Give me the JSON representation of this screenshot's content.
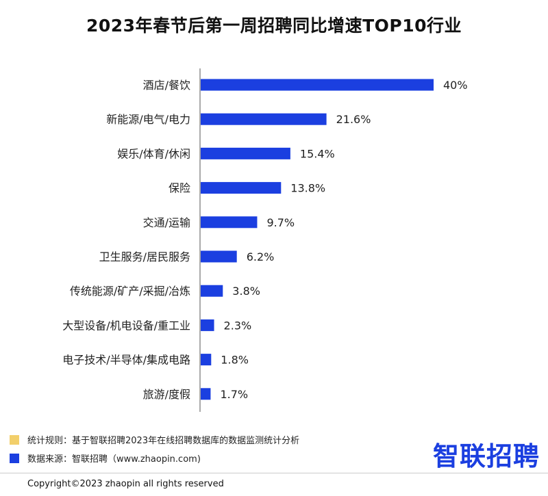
{
  "title": "2023年春节后第一周招聘同比增速TOP10行业",
  "chart_data": {
    "type": "bar",
    "orientation": "horizontal",
    "categories": [
      "酒店/餐饮",
      "新能源/电气/电力",
      "娱乐/体育/休闲",
      "保险",
      "交通/运输",
      "卫生服务/居民服务",
      "传统能源/矿产/采掘/冶炼",
      "大型设备/机电设备/重工业",
      "电子技术/半导体/集成电路",
      "旅游/度假"
    ],
    "values": [
      40,
      21.6,
      15.4,
      13.8,
      9.7,
      6.2,
      3.8,
      2.3,
      1.8,
      1.7
    ],
    "value_labels": [
      "40%",
      "21.6%",
      "15.4%",
      "13.8%",
      "9.7%",
      "6.2%",
      "3.8%",
      "2.3%",
      "1.8%",
      "1.7%"
    ],
    "xlim": [
      0,
      40
    ],
    "grid": false,
    "bar_color": "#1b3fe0"
  },
  "legend": {
    "rule_color": "#f2cf6b",
    "rule_text": "统计规则：基于智联招聘2023年在线招聘数据库的数据监测统计分析",
    "source_color": "#1b3fe0",
    "source_text": "数据来源：智联招聘（www.zhaopin.com)"
  },
  "brand": "智联招聘",
  "copyright": "Copyright©2023 zhaopin all rights reserved"
}
